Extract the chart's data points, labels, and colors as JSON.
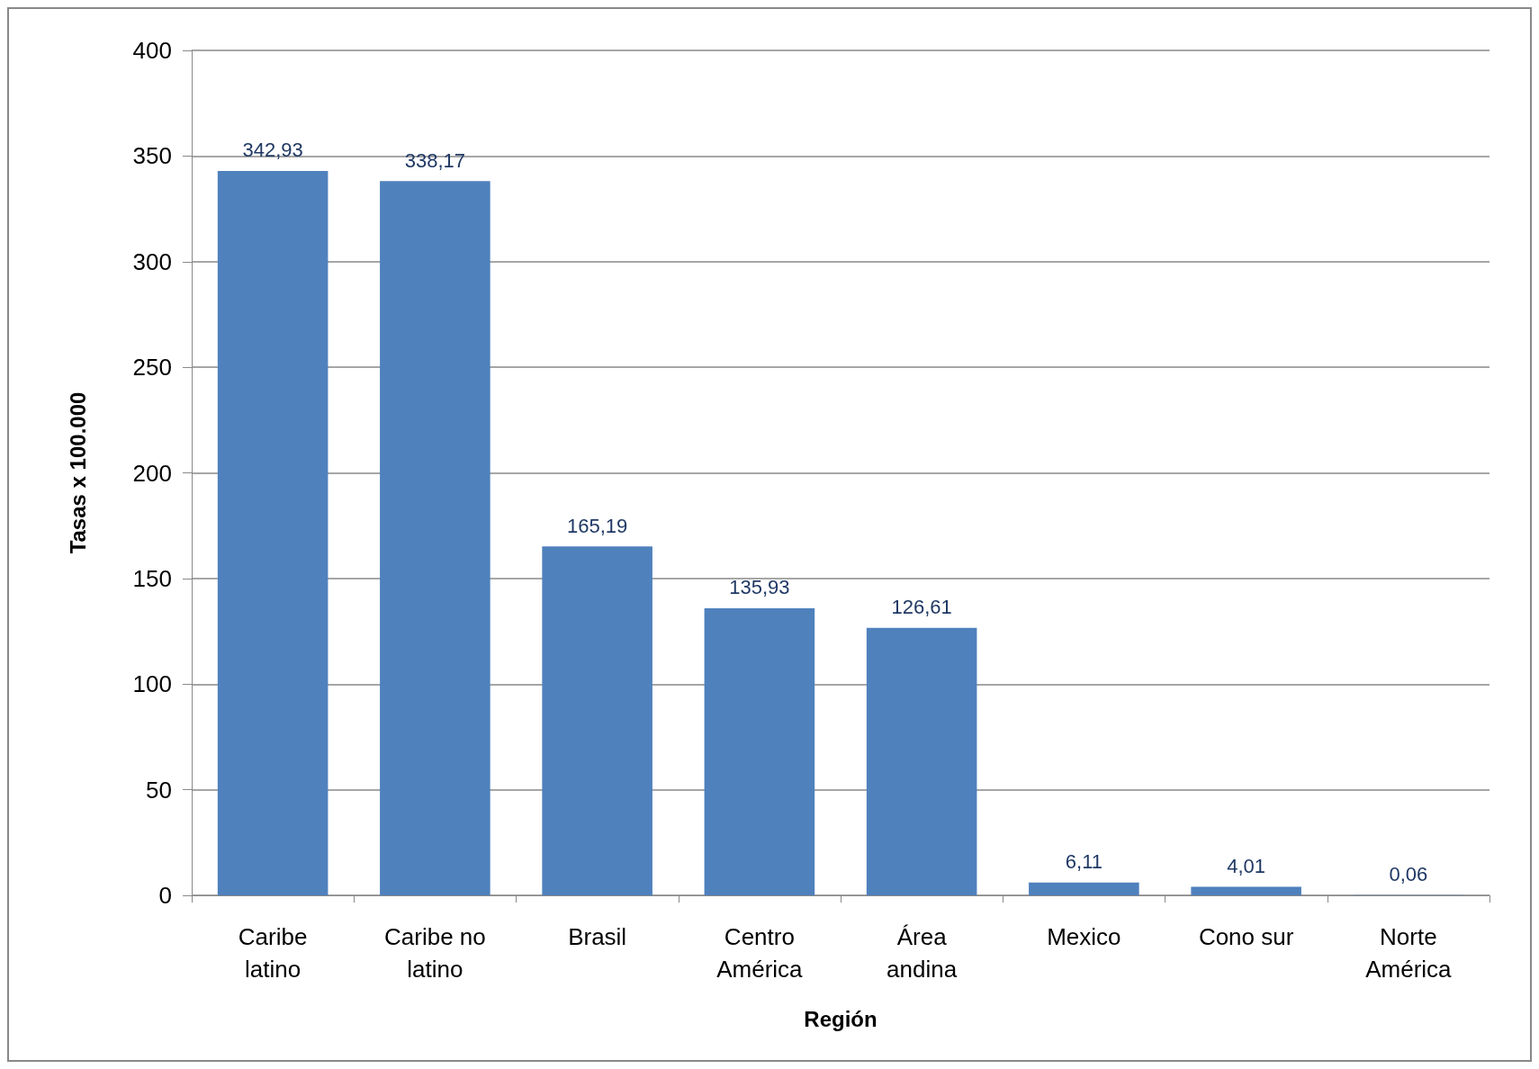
{
  "chart_data": {
    "type": "bar",
    "xlabel": "Región",
    "ylabel": "Tasas x 100.000",
    "categories": [
      "Caribe\nlatino",
      "Caribe no\nlatino",
      "Brasil",
      "Centro\nAmérica",
      "Área\nandina",
      "Mexico",
      "Cono sur",
      "Norte\nAmérica"
    ],
    "values": [
      342.93,
      338.17,
      165.19,
      135.93,
      126.61,
      6.11,
      4.01,
      0.06
    ],
    "value_labels": [
      "342,93",
      "338,17",
      "165,19",
      "135,93",
      "126,61",
      "6,11",
      "4,01",
      "0,06"
    ],
    "color": "#4f81bd",
    "ylim": [
      0,
      400
    ],
    "yticks": [
      0,
      50,
      100,
      150,
      200,
      250,
      300,
      350,
      400
    ],
    "grid": "y"
  }
}
